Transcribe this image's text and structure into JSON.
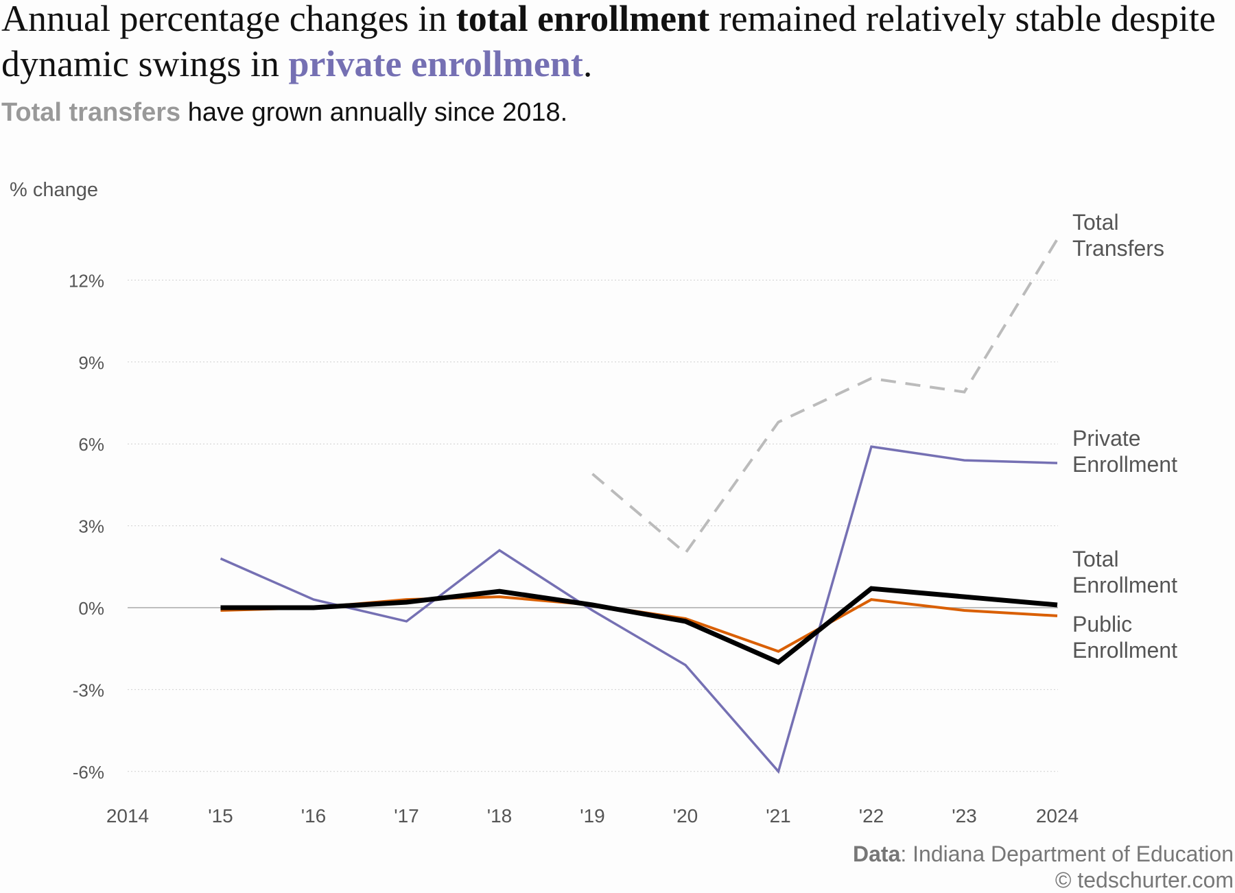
{
  "title": {
    "part1": "Annual percentage changes in ",
    "bold": "total enrollment",
    "part2": " remained relatively stable despite dynamic swings in ",
    "accent": "private enrollment",
    "part3": "."
  },
  "subtitle": {
    "highlight": "Total transfers",
    "rest": " have grown annually since 2018."
  },
  "source": {
    "label": "Data",
    "text": ": Indiana Department of Education",
    "credit": "© tedschurter.com"
  },
  "chart_data": {
    "type": "line",
    "ylabel": "% change",
    "ylim": [
      -6,
      13.5
    ],
    "yticks": [
      -6,
      -3,
      0,
      3,
      6,
      9,
      12
    ],
    "ytick_labels": [
      "-6%",
      "-3%",
      "0%",
      "3%",
      "6%",
      "9%",
      "12%"
    ],
    "x": [
      2014,
      2015,
      2016,
      2017,
      2018,
      2019,
      2020,
      2021,
      2022,
      2023,
      2024
    ],
    "xtick_labels": [
      "2014",
      "'15",
      "'16",
      "'17",
      "'18",
      "'19",
      "'20",
      "'21",
      "'22",
      "'23",
      "2024"
    ],
    "grid": "horizontal dotted",
    "series": [
      {
        "name": "Total Transfers",
        "label_lines": [
          "Total",
          "Transfers"
        ],
        "color": "#bbbbbb",
        "dashed": true,
        "x": [
          2019,
          2020,
          2021,
          2022,
          2023,
          2024
        ],
        "values": [
          4.9,
          2.0,
          6.8,
          8.4,
          7.9,
          13.5
        ]
      },
      {
        "name": "Private Enrollment",
        "label_lines": [
          "Private",
          "Enrollment"
        ],
        "color": "#7570b3",
        "x": [
          2015,
          2016,
          2017,
          2018,
          2019,
          2020,
          2021,
          2022,
          2023,
          2024
        ],
        "values": [
          1.8,
          0.3,
          -0.5,
          2.1,
          -0.1,
          -2.1,
          -6.0,
          5.9,
          5.4,
          5.3
        ]
      },
      {
        "name": "Total Enrollment",
        "label_lines": [
          "Total",
          "Enrollment"
        ],
        "color": "#000000",
        "x": [
          2015,
          2016,
          2017,
          2018,
          2019,
          2020,
          2021,
          2022,
          2023,
          2024
        ],
        "values": [
          0.0,
          0.0,
          0.2,
          0.6,
          0.1,
          -0.5,
          -2.0,
          0.7,
          0.4,
          0.1
        ]
      },
      {
        "name": "Public Enrollment",
        "label_lines": [
          "Public",
          "Enrollment"
        ],
        "color": "#d95f02",
        "x": [
          2015,
          2016,
          2017,
          2018,
          2019,
          2020,
          2021,
          2022,
          2023,
          2024
        ],
        "values": [
          -0.1,
          0.0,
          0.3,
          0.4,
          0.1,
          -0.4,
          -1.6,
          0.3,
          -0.1,
          -0.3
        ]
      }
    ]
  }
}
